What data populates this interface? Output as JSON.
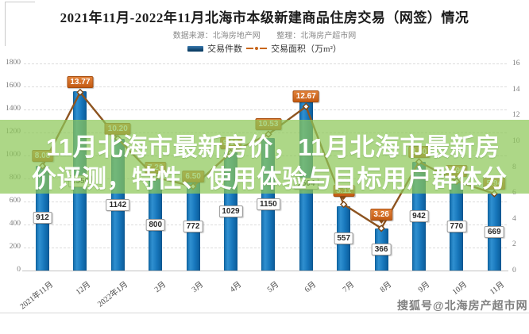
{
  "header": {
    "title": "2021年11月-2022年11月北海市本级新建商品住房交易（网签）情况",
    "source_label": "数据来源：北海房地产网",
    "editor_label": "整理：北海房产超市网"
  },
  "legend": {
    "bars_label": "交易件数",
    "line_label": "交易面积（万m²）"
  },
  "overlay": {
    "lines": [
      "11月北海市最新房价，11月北海市最新房",
      "价评测，特性、使用体验与目标用户群体分"
    ],
    "bg_color": "#8ec759",
    "text_color": "#ffffff"
  },
  "watermark": {
    "text": "搜狐号@北海房产超市网"
  },
  "colors": {
    "bar_fill": "#1878bd",
    "bar_edge_dark": "#0a5a98",
    "line": "#8d5420",
    "line_label_bg": "#c35a12",
    "grid": "#dcdcdc",
    "tick_text": "#7d7d7d"
  },
  "chart_data": {
    "type": "bar",
    "combo": "bar+line",
    "title": "2021年11月-2022年11月北海市本级新建商品住房交易（网签）情况",
    "categories": [
      "2021年11月",
      "12月",
      "2022年1月",
      "2月",
      "3月",
      "4月",
      "5月",
      "6月",
      "7月",
      "8月",
      "9月",
      "10月",
      "11月"
    ],
    "series": [
      {
        "name": "交易件数",
        "type": "bar",
        "axis": "left",
        "values": [
          912,
          1556,
          1142,
          800,
          772,
          1029,
          1150,
          1504,
          557,
          366,
          942,
          770,
          669
        ]
      },
      {
        "name": "交易面积（万m²）",
        "type": "line",
        "axis": "right",
        "values": [
          8.08,
          13.77,
          10.2,
          7.2,
          6.5,
          9.1,
          10.53,
          12.67,
          5.11,
          3.26,
          8.4,
          6.9,
          5.94
        ]
      }
    ],
    "hidden_by_overlay": {
      "bar_value_indices_estimated": [
        1
      ],
      "line_value_indices_estimated": [
        2,
        3,
        5,
        10,
        11
      ]
    },
    "line_labels_with_pointer_indices": [
      8,
      9
    ],
    "left_axis": {
      "min": 0,
      "max": 1800,
      "step": 200
    },
    "right_axis": {
      "min": 0,
      "max": 16,
      "step": 2
    },
    "grid": "dashed horizontal",
    "legend_position": "top-center"
  }
}
